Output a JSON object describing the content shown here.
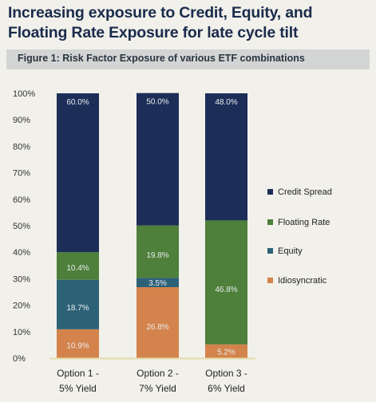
{
  "header": {
    "title_line1": "Increasing exposure to Credit, Equity, and",
    "title_line2": "Floating Rate Exposure for late cycle tilt",
    "figure_title": "Figure 1: Risk Factor Exposure of various ETF combinations"
  },
  "chart_data": {
    "type": "bar",
    "stacked": true,
    "title": "Figure 1: Risk Factor Exposure of various ETF combinations",
    "categories_line1": [
      "Option 1 -",
      "Option 2 -",
      "Option 3 -"
    ],
    "categories_line2": [
      "5% Yield",
      "7% Yield",
      "6% Yield"
    ],
    "ylim": [
      0,
      100
    ],
    "y_ticks": [
      0,
      10,
      20,
      30,
      40,
      50,
      60,
      70,
      80,
      90,
      100
    ],
    "y_tick_labels": [
      "0%",
      "10%",
      "20%",
      "30%",
      "40%",
      "50%",
      "60%",
      "70%",
      "80%",
      "90%",
      "100%"
    ],
    "legend_position": "right",
    "series": [
      {
        "name": "Idiosyncratic",
        "color": "#d3834b",
        "values": [
          10.9,
          26.8,
          5.2
        ],
        "labels": [
          "10.9%",
          "26.8%",
          "5.2%"
        ]
      },
      {
        "name": "Equity",
        "color": "#2d6177",
        "values": [
          18.7,
          3.5,
          0
        ],
        "labels": [
          "18.7%",
          "3.5%",
          ""
        ]
      },
      {
        "name": "Floating Rate",
        "color": "#4e7f3b",
        "values": [
          10.4,
          19.8,
          46.8
        ],
        "labels": [
          "10.4%",
          "19.8%",
          "46.8%"
        ]
      },
      {
        "name": "Credit Spread",
        "color": "#1c2e57",
        "values": [
          60.0,
          50.0,
          48.0
        ],
        "labels": [
          "60.0%",
          "50.0%",
          "48.0%"
        ]
      }
    ],
    "legend_order": [
      "Credit Spread",
      "Floating Rate",
      "Equity",
      "Idiosyncratic"
    ]
  }
}
